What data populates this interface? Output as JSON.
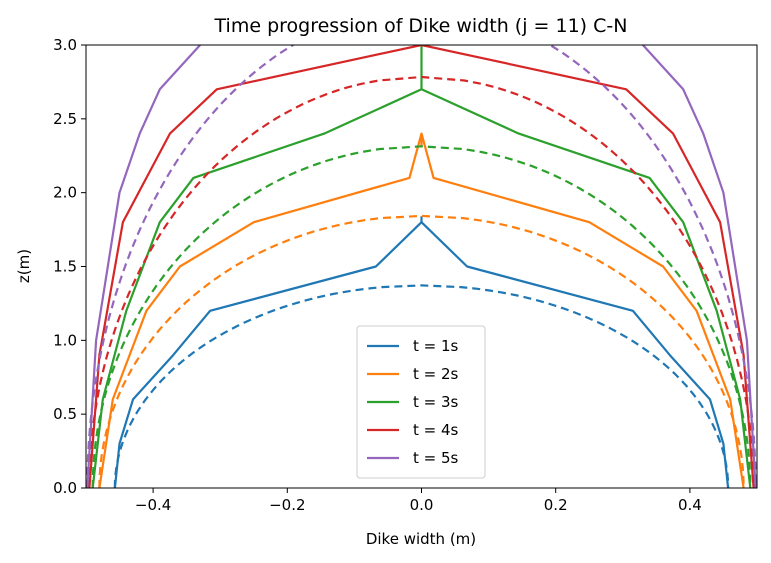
{
  "chart_data": {
    "type": "line",
    "title": "Time progression of Dike width (j = 11) C-N",
    "xlabel": "Dike width (m)",
    "ylabel": "z(m)",
    "xlim": [
      -0.5,
      0.5
    ],
    "ylim": [
      0.0,
      3.0
    ],
    "xticks": [
      -0.4,
      -0.2,
      0.0,
      0.2,
      0.4
    ],
    "xtick_labels": [
      "−0.4",
      "−0.2",
      "0.0",
      "0.2",
      "0.4"
    ],
    "yticks": [
      0.0,
      0.5,
      1.0,
      1.5,
      2.0,
      2.5,
      3.0
    ],
    "ytick_labels": [
      "0.0",
      "0.5",
      "1.0",
      "1.5",
      "2.0",
      "2.5",
      "3.0"
    ],
    "grid": false,
    "legend_position": "bottom-center",
    "legend": [
      "t = 1s",
      "t = 2s",
      "t = 3s",
      "t = 4s",
      "t = 5s"
    ],
    "series": [
      {
        "name": "t = 1s",
        "color": "#1f77b4",
        "solid": [
          [
            -0.457,
            0.0
          ],
          [
            -0.45,
            0.3
          ],
          [
            -0.43,
            0.6
          ],
          [
            -0.37,
            0.9
          ],
          [
            -0.315,
            1.2
          ],
          [
            -0.068,
            1.5
          ],
          [
            0.0,
            1.8
          ],
          [
            0.068,
            1.5
          ],
          [
            0.315,
            1.2
          ],
          [
            0.37,
            0.9
          ],
          [
            0.43,
            0.6
          ],
          [
            0.45,
            0.3
          ],
          [
            0.457,
            0.0
          ]
        ],
        "solid_tip": [
          [
            0.0,
            1.8
          ],
          [
            0.0,
            1.84
          ]
        ],
        "dashed_peak": 1.372,
        "dashed_halfwidth": 0.457
      },
      {
        "name": "t = 2s",
        "color": "#ff7f0e",
        "solid": [
          [
            -0.48,
            0.0
          ],
          [
            -0.46,
            0.6
          ],
          [
            -0.41,
            1.2
          ],
          [
            -0.36,
            1.5
          ],
          [
            -0.25,
            1.8
          ],
          [
            -0.018,
            2.1
          ],
          [
            0.0,
            2.4
          ],
          [
            0.018,
            2.1
          ],
          [
            0.25,
            1.8
          ],
          [
            0.36,
            1.5
          ],
          [
            0.41,
            1.2
          ],
          [
            0.46,
            0.6
          ],
          [
            0.48,
            0.0
          ]
        ],
        "solid_tip": [
          [
            0.0,
            2.4
          ],
          [
            0.0,
            2.32
          ]
        ],
        "dashed_peak": 1.843,
        "dashed_halfwidth": 0.48
      },
      {
        "name": "t = 3s",
        "color": "#2ca02c",
        "solid": [
          [
            -0.49,
            0.0
          ],
          [
            -0.475,
            0.6
          ],
          [
            -0.44,
            1.2
          ],
          [
            -0.39,
            1.8
          ],
          [
            -0.34,
            2.1
          ],
          [
            -0.145,
            2.4
          ],
          [
            0.0,
            2.7
          ],
          [
            0.145,
            2.4
          ],
          [
            0.34,
            2.1
          ],
          [
            0.39,
            1.8
          ],
          [
            0.44,
            1.2
          ],
          [
            0.475,
            0.6
          ],
          [
            0.49,
            0.0
          ]
        ],
        "solid_tip": [
          [
            0.0,
            2.7
          ],
          [
            0.0,
            3.0
          ]
        ],
        "dashed_peak": 2.314,
        "dashed_halfwidth": 0.49
      },
      {
        "name": "t = 4s",
        "color": "#d62728",
        "solid": [
          [
            -0.495,
            0.0
          ],
          [
            -0.48,
            0.9
          ],
          [
            -0.445,
            1.8
          ],
          [
            -0.41,
            2.1
          ],
          [
            -0.375,
            2.4
          ],
          [
            -0.305,
            2.7
          ],
          [
            0.0,
            3.0
          ],
          [
            0.305,
            2.7
          ],
          [
            0.375,
            2.4
          ],
          [
            0.41,
            2.1
          ],
          [
            0.445,
            1.8
          ],
          [
            0.48,
            0.9
          ],
          [
            0.495,
            0.0
          ]
        ],
        "dashed_peak": 2.783,
        "dashed_halfwidth": 0.495
      },
      {
        "name": "t = 5s",
        "color": "#9467bd",
        "solid": [
          [
            -0.498,
            0.0
          ],
          [
            -0.485,
            1.0
          ],
          [
            -0.45,
            2.0
          ],
          [
            -0.42,
            2.4
          ],
          [
            -0.39,
            2.7
          ],
          [
            -0.33,
            3.0
          ]
        ],
        "solid_right": [
          [
            0.33,
            3.0
          ],
          [
            0.39,
            2.7
          ],
          [
            0.42,
            2.4
          ],
          [
            0.45,
            2.0
          ],
          [
            0.485,
            1.0
          ],
          [
            0.498,
            0.0
          ]
        ],
        "dashed_peak": 3.25,
        "dashed_halfwidth": 0.498
      }
    ]
  }
}
